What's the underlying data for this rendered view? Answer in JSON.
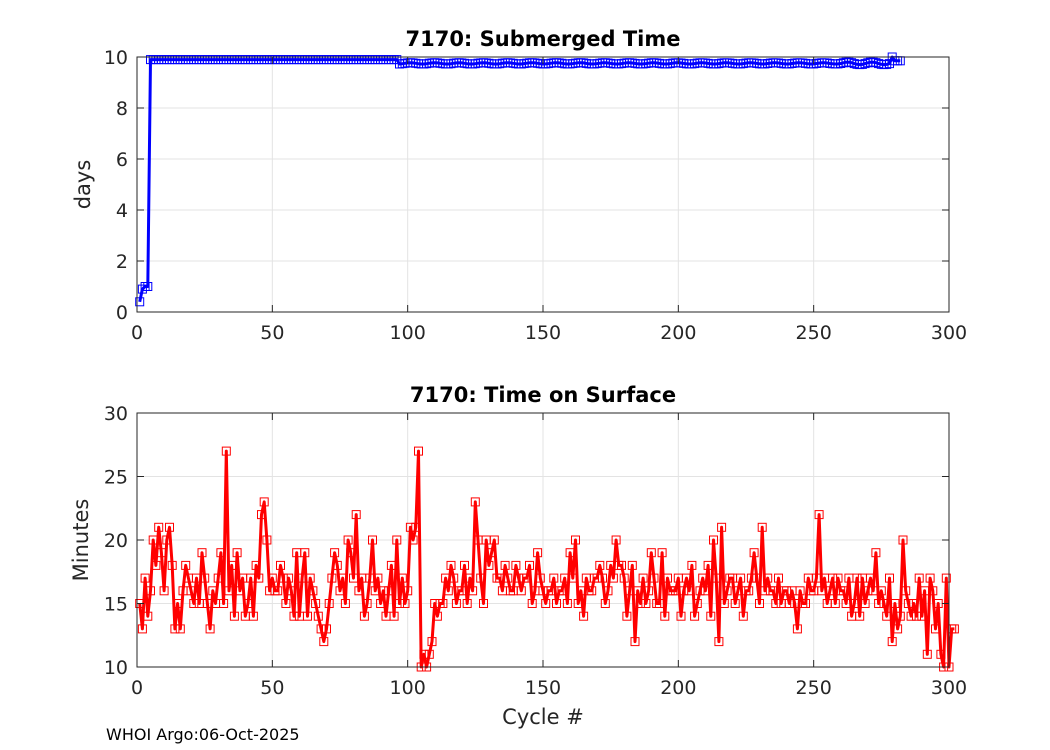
{
  "footer": "WHOI Argo:06-Oct-2025",
  "chart_data": [
    {
      "type": "line",
      "title": "7170: Submerged Time",
      "xlabel": "",
      "ylabel": "days",
      "xlim": [
        0,
        300
      ],
      "ylim": [
        0,
        10
      ],
      "xticks": [
        "0",
        "50",
        "100",
        "150",
        "200",
        "250",
        "300"
      ],
      "yticks": [
        "0",
        "2",
        "4",
        "6",
        "8",
        "10"
      ],
      "grid": true,
      "marker": "square",
      "color": "#0000ff",
      "x_range": [
        1,
        282
      ],
      "y_description": "0.4 at cycle 1, ~1 at cycles 2-4, jumps to ~9.9 at cycle 5; ~9.9 through cycle 96, ~9.75 from cycle 97 to 282 with a 10.0 point near cycle 279",
      "y_key_points": [
        {
          "x": 1,
          "y": 0.4
        },
        {
          "x": 2,
          "y": 0.9
        },
        {
          "x": 3,
          "y": 1.0
        },
        {
          "x": 4,
          "y": 1.0
        },
        {
          "x": 5,
          "y": 9.9
        },
        {
          "x": 96,
          "y": 9.9
        },
        {
          "x": 97,
          "y": 9.75
        },
        {
          "x": 278,
          "y": 9.8
        },
        {
          "x": 279,
          "y": 10.0
        },
        {
          "x": 282,
          "y": 9.85
        }
      ]
    },
    {
      "type": "line",
      "title": "7170: Time on Surface",
      "xlabel": "Cycle #",
      "ylabel": "Minutes",
      "xlim": [
        0,
        300
      ],
      "ylim": [
        10,
        30
      ],
      "xticks": [
        "0",
        "50",
        "100",
        "150",
        "200",
        "250",
        "300"
      ],
      "yticks": [
        "10",
        "15",
        "20",
        "25",
        "30"
      ],
      "grid": true,
      "marker": "square",
      "color": "#ff0000",
      "x_start": 1,
      "values": [
        15,
        13,
        17,
        14,
        16,
        20,
        18,
        21,
        19,
        16,
        20,
        21,
        18,
        13,
        15,
        13,
        16,
        18,
        17,
        16,
        15,
        17,
        15,
        19,
        17,
        15,
        13,
        16,
        15,
        17,
        19,
        15,
        27,
        16,
        18,
        14,
        19,
        16,
        17,
        14,
        15,
        17,
        14,
        18,
        17,
        22,
        23,
        20,
        16,
        17,
        16,
        16,
        18,
        17,
        15,
        17,
        16,
        14,
        19,
        14,
        17,
        19,
        14,
        17,
        16,
        15,
        14,
        13,
        12,
        13,
        15,
        17,
        19,
        18,
        16,
        17,
        15,
        20,
        19,
        17,
        22,
        16,
        17,
        14,
        15,
        17,
        20,
        16,
        17,
        15,
        16,
        14,
        16,
        18,
        14,
        20,
        15,
        17,
        15,
        16,
        21,
        20,
        21,
        27,
        10,
        11,
        10,
        11,
        12,
        15,
        14,
        15,
        15,
        17,
        16,
        18,
        17,
        15,
        16,
        16,
        18,
        15,
        17,
        16,
        23,
        20,
        17,
        15,
        20,
        18,
        19,
        20,
        17,
        17,
        16,
        18,
        17,
        16,
        16,
        18,
        17,
        16,
        17,
        17,
        18,
        15,
        16,
        19,
        17,
        16,
        15,
        16,
        16,
        17,
        15,
        16,
        16,
        17,
        15,
        19,
        17,
        20,
        15,
        16,
        14,
        17,
        16,
        16,
        17,
        17,
        18,
        17,
        15,
        16,
        18,
        17,
        20,
        18,
        18,
        17,
        14,
        16,
        18,
        12,
        16,
        15,
        17,
        15,
        16,
        19,
        17,
        15,
        15,
        19,
        14,
        17,
        16,
        16,
        16,
        17,
        14,
        16,
        17,
        16,
        18,
        14,
        15,
        16,
        17,
        16,
        18,
        14,
        20,
        17,
        12,
        21,
        15,
        16,
        17,
        17,
        15,
        16,
        17,
        14,
        16,
        16,
        17,
        19,
        17,
        15,
        21,
        16,
        17,
        16,
        16,
        15,
        17,
        15,
        16,
        16,
        15,
        16,
        15,
        13,
        16,
        15,
        15,
        17,
        16,
        16,
        17,
        22,
        16,
        17,
        15,
        16,
        17,
        15,
        17,
        16,
        16,
        15,
        17,
        14,
        15,
        17,
        14,
        17,
        15,
        16,
        17,
        16,
        19,
        15,
        16,
        15,
        14,
        17,
        12,
        15,
        13,
        14,
        20,
        16,
        15,
        14,
        15,
        14,
        17,
        14,
        16,
        11,
        17,
        16,
        13,
        15,
        11,
        10,
        17,
        10,
        13,
        13
      ]
    }
  ]
}
